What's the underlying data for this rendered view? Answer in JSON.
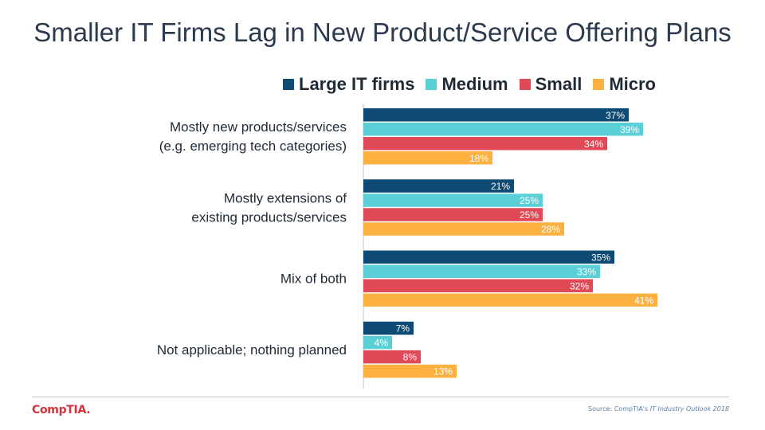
{
  "chart_data": {
    "type": "bar",
    "orientation": "horizontal",
    "title": "Smaller IT Firms Lag in New Product/Service Offering Plans",
    "categories": [
      [
        "Mostly new products/services",
        "(e.g. emerging tech categories)"
      ],
      [
        "Mostly extensions of",
        "existing products/services"
      ],
      [
        "Mix of both"
      ],
      [
        "Not applicable; nothing planned"
      ]
    ],
    "series": [
      {
        "name": "Large IT firms",
        "color": "#0d4a74",
        "values": [
          37,
          21,
          35,
          7
        ]
      },
      {
        "name": "Medium",
        "color": "#5bcfd6",
        "values": [
          39,
          25,
          33,
          4
        ]
      },
      {
        "name": "Small",
        "color": "#e04a56",
        "values": [
          34,
          25,
          32,
          8
        ]
      },
      {
        "name": "Micro",
        "color": "#fbb040",
        "values": [
          18,
          28,
          41,
          13
        ]
      }
    ],
    "value_suffix": "%",
    "xlim": [
      0,
      100
    ],
    "grid": false,
    "legend_position": "top"
  },
  "footer": {
    "logo": "CompTIA.",
    "source_prefix": "Source: CompTIA's ",
    "source_title": "IT Industry Outlook 2018"
  }
}
